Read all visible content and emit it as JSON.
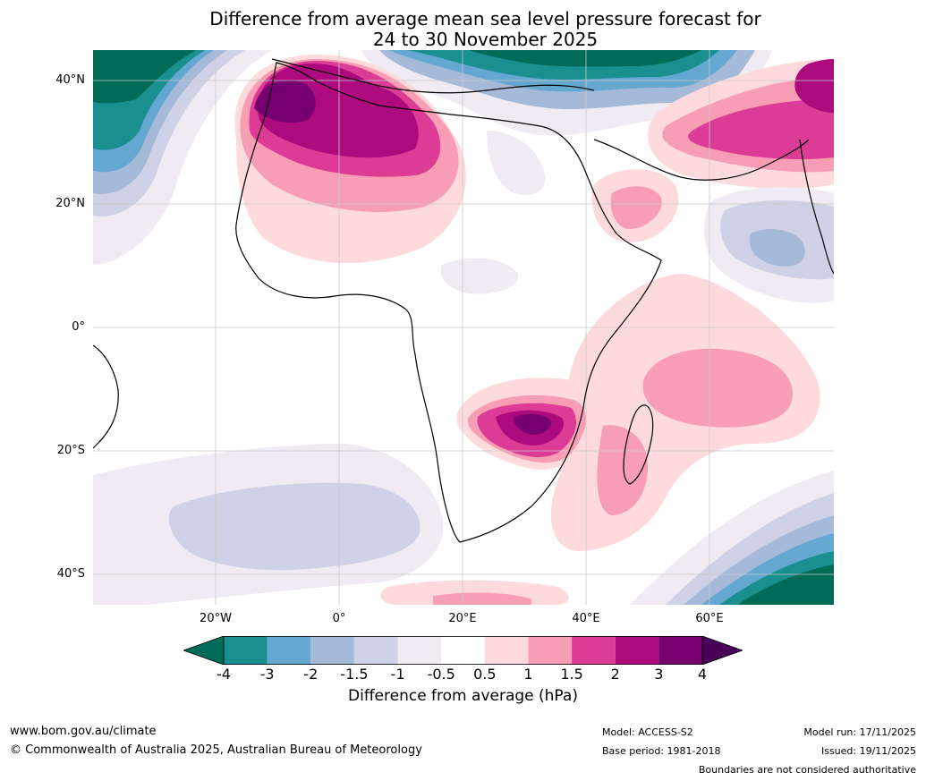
{
  "title_line1": "Difference from average mean sea level pressure forecast for",
  "title_line2": "24 to 30 November 2025",
  "map": {
    "lat_labels": [
      "40°N",
      "20°N",
      "0°",
      "20°S",
      "40°S"
    ],
    "lon_labels": [
      "20°W",
      "0°",
      "20°E",
      "40°E",
      "60°E"
    ],
    "region": "Africa and surrounding oceans",
    "features": [
      {
        "name": "North-west Africa positive anomaly",
        "max_hPa": 4
      },
      {
        "name": "Southern Africa positive anomaly",
        "max_hPa": 4
      },
      {
        "name": "Southern Indian Ocean positive anomaly",
        "max_hPa": 1.5
      },
      {
        "name": "Middle East positive anomaly",
        "max_hPa": 3
      },
      {
        "name": "North Atlantic negative anomaly",
        "min_hPa": -4
      },
      {
        "name": "Mediterranean negative anomaly",
        "min_hPa": -4
      },
      {
        "name": "Southern Ocean negative anomaly",
        "min_hPa": -4
      },
      {
        "name": "Arabian Sea negative anomaly",
        "min_hPa": -2
      }
    ]
  },
  "colorbar": {
    "ticks": [
      "-4",
      "-3",
      "-2",
      "-1.5",
      "-1",
      "-0.5",
      "0.5",
      "1",
      "1.5",
      "2",
      "3",
      "4"
    ],
    "colors": [
      "#006b57",
      "#1a8f8f",
      "#64a7d0",
      "#a5b9d8",
      "#cfd1e6",
      "#f0ebf2",
      "#ffffff",
      "#fddbdc",
      "#f79db4",
      "#dc3c96",
      "#ad0a7e",
      "#760070",
      "#4a0058"
    ],
    "label": "Difference from average (hPa)"
  },
  "footer": {
    "website": "www.bom.gov.au/climate",
    "copyright": "© Commonwealth of Australia 2025, Australian Bureau of Meteorology",
    "model": "Model: ACCESS-S2",
    "base_period": "Base period: 1981-2018",
    "model_run": "Model run: 17/11/2025",
    "issued": "Issued: 19/11/2025",
    "disclaimer": "Boundaries are not considered authoritative"
  }
}
